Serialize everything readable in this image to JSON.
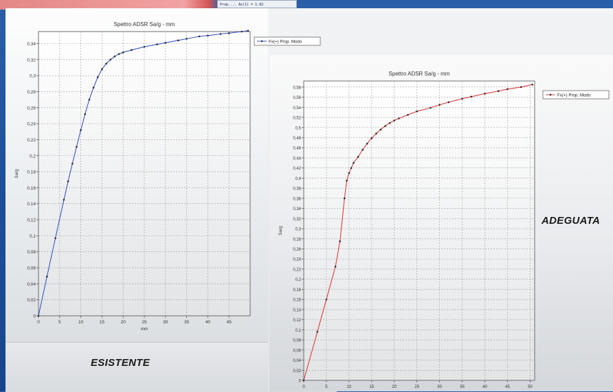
{
  "top_strip": {
    "mini_text": "Prop....  Ax(1) = 1.02"
  },
  "captions": {
    "left": "ESISTENTE",
    "right": "ADEGUATA"
  },
  "chart_data": [
    {
      "type": "line",
      "title": "Spettro ADSR Sa/g - mm",
      "xlabel": "mm",
      "ylabel": "Sa/g",
      "xlim": [
        0,
        50
      ],
      "ylim": [
        0,
        0.355
      ],
      "xticks": [
        0,
        5,
        10,
        15,
        20,
        25,
        30,
        35,
        40,
        45
      ],
      "yticks": [
        0,
        0.02,
        0.04,
        0.06,
        0.08,
        0.1,
        0.12,
        0.14,
        0.16,
        0.18,
        0.2,
        0.22,
        0.24,
        0.26,
        0.28,
        0.3,
        0.32,
        0.34
      ],
      "ytick_labels": [
        "0",
        "0,02",
        "0,04",
        "0,06",
        "0,08",
        "0,1",
        "0,12",
        "0,14",
        "0,16",
        "0,18",
        "0,2",
        "0,22",
        "0,24",
        "0,26",
        "0,28",
        "0,3",
        "0,32",
        "0,34"
      ],
      "grid": true,
      "legend_position": "top-right",
      "line_color": "#3a55c8",
      "series": [
        {
          "name": "Fx(+) Prop. Modo",
          "x": [
            0,
            2,
            4,
            6,
            7,
            8,
            9,
            10,
            11,
            12,
            13,
            14,
            15,
            16,
            17,
            18,
            19,
            20,
            22,
            25,
            28,
            30,
            33,
            35,
            38,
            40,
            43,
            45,
            48,
            49.5
          ],
          "y": [
            0,
            0.049,
            0.097,
            0.145,
            0.168,
            0.19,
            0.211,
            0.232,
            0.252,
            0.27,
            0.285,
            0.298,
            0.308,
            0.315,
            0.32,
            0.324,
            0.327,
            0.329,
            0.332,
            0.336,
            0.339,
            0.341,
            0.344,
            0.346,
            0.349,
            0.35,
            0.352,
            0.353,
            0.355,
            0.356
          ]
        }
      ]
    },
    {
      "type": "line",
      "title": "Spettro ADSR Sa/g - mm",
      "xlabel": "",
      "ylabel": "Sa/g",
      "xlim": [
        0,
        51
      ],
      "ylim": [
        0,
        0.592
      ],
      "xticks": [
        0,
        5,
        10,
        15,
        20,
        25,
        30,
        35,
        40,
        45,
        50
      ],
      "yticks": [
        0,
        0.02,
        0.04,
        0.06,
        0.08,
        0.1,
        0.12,
        0.14,
        0.16,
        0.18,
        0.2,
        0.22,
        0.24,
        0.26,
        0.28,
        0.3,
        0.32,
        0.34,
        0.36,
        0.38,
        0.4,
        0.42,
        0.44,
        0.46,
        0.48,
        0.5,
        0.52,
        0.54,
        0.56,
        0.58
      ],
      "ytick_labels": [
        "0",
        "0,02",
        "0,04",
        "0,06",
        "0,08",
        "0,1",
        "0,12",
        "0,14",
        "0,16",
        "0,18",
        "0,2",
        "0,22",
        "0,24",
        "0,26",
        "0,28",
        "0,3",
        "0,32",
        "0,34",
        "0,36",
        "0,38",
        "0,4",
        "0,42",
        "0,44",
        "0,46",
        "0,48",
        "0,5",
        "0,52",
        "0,54",
        "0,56",
        "0,58"
      ],
      "grid": true,
      "legend_position": "top-right",
      "line_color": "#e23b3b",
      "series": [
        {
          "name": "Fx(+) Prop. Modo",
          "x": [
            0,
            3,
            5,
            7,
            8,
            9,
            9.5,
            10,
            10.5,
            11,
            12,
            13,
            14,
            15,
            16,
            17,
            18,
            19,
            20,
            21,
            23,
            25,
            28,
            30,
            32,
            35,
            37,
            40,
            43,
            45,
            48,
            50.5
          ],
          "y": [
            0,
            0.096,
            0.16,
            0.225,
            0.275,
            0.36,
            0.395,
            0.41,
            0.42,
            0.43,
            0.442,
            0.456,
            0.468,
            0.479,
            0.488,
            0.496,
            0.503,
            0.509,
            0.514,
            0.518,
            0.525,
            0.532,
            0.539,
            0.545,
            0.55,
            0.557,
            0.561,
            0.567,
            0.572,
            0.576,
            0.58,
            0.585
          ]
        }
      ]
    }
  ]
}
